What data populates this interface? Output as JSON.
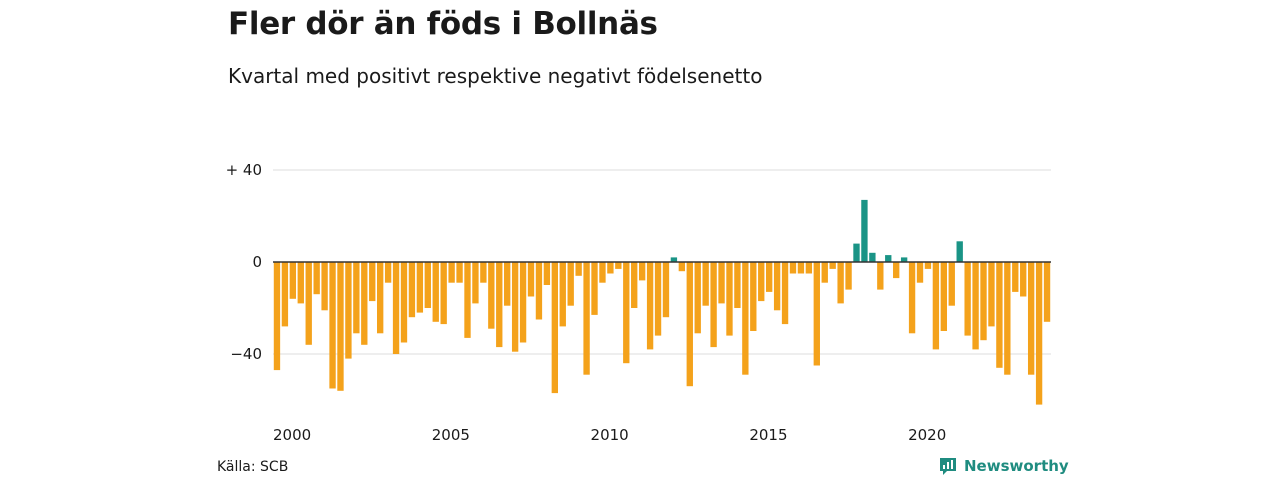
{
  "title": "Fler dör än föds i Bollnäs",
  "subtitle": "Kvartal med positivt respektive negativt födelsenetto",
  "source": "Källa: SCB",
  "brand": {
    "name": "Newsworthy",
    "icon": "newsworthy-logo-icon"
  },
  "colors": {
    "positive": "#1a9486",
    "negative": "#f4a21b",
    "grid": "#dcdcdc",
    "zero_line": "#333333"
  },
  "chart_data": {
    "type": "bar",
    "title": "Fler dör än föds i Bollnäs",
    "subtitle": "Kvartal med positivt respektive negativt födelsenetto",
    "ylim": [
      -62,
      40
    ],
    "y_ticks": [
      {
        "value": 40,
        "label": "+ 40"
      },
      {
        "value": 0,
        "label": "0"
      },
      {
        "value": -40,
        "label": "−40"
      }
    ],
    "x_ticks": [
      {
        "index": 0,
        "label": "2000"
      },
      {
        "index": 20,
        "label": "2005"
      },
      {
        "index": 40,
        "label": "2010"
      },
      {
        "index": 60,
        "label": "2015"
      },
      {
        "index": 80,
        "label": "2020"
      }
    ],
    "start": "2000 Q1",
    "end": "2024 Q2",
    "grid": "horizontal",
    "values": [
      -47,
      -28,
      -16,
      -18,
      -36,
      -14,
      -21,
      -55,
      -56,
      -42,
      -31,
      -36,
      -17,
      -31,
      -9,
      -40,
      -35,
      -24,
      -22,
      -20,
      -26,
      -27,
      -9,
      -9,
      -33,
      -18,
      -9,
      -29,
      -37,
      -19,
      -39,
      -35,
      -15,
      -25,
      -10,
      -57,
      -28,
      -19,
      -6,
      -49,
      -23,
      -9,
      -5,
      -3,
      -44,
      -20,
      -8,
      -38,
      -32,
      -24,
      2,
      -4,
      -54,
      -31,
      -19,
      -37,
      -18,
      -32,
      -20,
      -49,
      -30,
      -17,
      -13,
      -21,
      -27,
      -5,
      -5,
      -5,
      -45,
      -9,
      -3,
      -18,
      -12,
      8,
      27,
      4,
      -12,
      3,
      -7,
      2,
      -31,
      -9,
      -3,
      -38,
      -30,
      -19,
      9,
      -32,
      -38,
      -34,
      -28,
      -46,
      -49,
      -13,
      -15,
      -49,
      -62,
      -26
    ]
  }
}
